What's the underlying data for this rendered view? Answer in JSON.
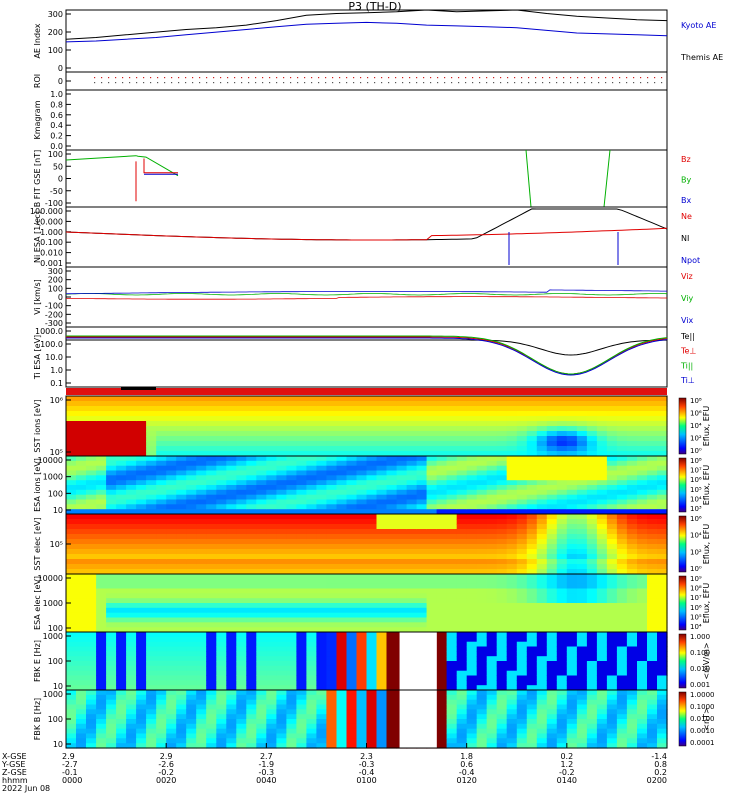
{
  "title": "P3 (TH-D)",
  "colors": {
    "black": "#000000",
    "red": "#e00000",
    "green": "#00b000",
    "blue": "#0000d0",
    "cyan": "#0080ff"
  },
  "chart_data": [
    {
      "type": "line",
      "name": "ae",
      "ylabel": "AE Index",
      "ylim": [
        -50,
        300
      ],
      "yticks": [
        "300",
        "200",
        "100",
        "0"
      ],
      "legend": [
        "Kyoto AE",
        "Themis AE"
      ],
      "series": [
        {
          "name": "Kyoto AE",
          "color": "#000000",
          "x": [
            0,
            5,
            10,
            15,
            20,
            25,
            30,
            35,
            40,
            45,
            50,
            55,
            60,
            65,
            70,
            75,
            80,
            85,
            90,
            95,
            100
          ],
          "values": [
            135,
            145,
            160,
            175,
            190,
            200,
            215,
            240,
            270,
            280,
            285,
            290,
            300,
            290,
            295,
            300,
            280,
            265,
            255,
            245,
            240
          ]
        },
        {
          "name": "Themis AE",
          "color": "#0000d0",
          "x": [
            0,
            5,
            10,
            15,
            20,
            25,
            30,
            35,
            40,
            45,
            50,
            55,
            60,
            65,
            70,
            75,
            80,
            85,
            90,
            95,
            100
          ],
          "values": [
            120,
            125,
            135,
            145,
            160,
            175,
            190,
            205,
            220,
            225,
            230,
            225,
            215,
            210,
            205,
            200,
            185,
            170,
            165,
            160,
            155
          ]
        }
      ]
    },
    {
      "type": "line",
      "name": "roi",
      "ylabel": "ROI",
      "ylim": [
        0,
        1
      ],
      "yticks": [
        "0"
      ]
    },
    {
      "type": "line",
      "name": "kgm",
      "ylabel": "Kmagram",
      "ylim": [
        0,
        1
      ],
      "yticks": [
        "1.0",
        "0.8",
        "0.6",
        "0.4",
        "0.2",
        "0.0"
      ]
    },
    {
      "type": "line",
      "name": "bfield",
      "ylabel": "B FIT GSE [nT]",
      "ylim": [
        -100,
        100
      ],
      "yticks": [
        "100",
        "50",
        "0",
        "-50",
        "-100"
      ],
      "legend": [
        "Bz",
        "By",
        "Bx"
      ]
    },
    {
      "type": "line",
      "name": "ni",
      "ylabel": "Ni ESA [1/cc]",
      "yticks": [
        "100.000",
        "10.000",
        "1.000",
        "0.100",
        "0.010",
        "0.001"
      ],
      "legend": [
        "Ne",
        "NI",
        "Npot"
      ]
    },
    {
      "type": "line",
      "name": "vi",
      "ylabel": "Vi [km/s]",
      "ylim": [
        -350,
        300
      ],
      "yticks": [
        "300",
        "200",
        "100",
        "0",
        "-100",
        "-200",
        "-300"
      ],
      "legend": [
        "Viz",
        "Viy",
        "Vix"
      ]
    },
    {
      "type": "line",
      "name": "ti",
      "ylabel": "Ti ESA [eV]",
      "yticks": [
        "1000.0",
        "100.0",
        "10.0",
        "1.0",
        "0.1"
      ],
      "legend": [
        "Te||",
        "Te⊥",
        "Ti||",
        "Ti⊥"
      ]
    },
    {
      "type": "heatmap",
      "name": "sst-ion",
      "ylabel": "SST ions [eV]",
      "yticks": [
        "10⁶",
        "10⁵"
      ],
      "cbar_label": "Eflux, EFU",
      "cbar_ticks": [
        "10⁸",
        "10⁶",
        "10⁴",
        "10²",
        "10⁰"
      ]
    },
    {
      "type": "heatmap",
      "name": "esa-ion",
      "ylabel": "ESA ions [eV]",
      "yticks": [
        "10000",
        "1000",
        "100",
        "10"
      ],
      "cbar_label": "Eflux, EFU",
      "cbar_ticks": [
        "10⁸",
        "10⁷",
        "10⁶",
        "10⁵",
        "10⁴",
        "10³"
      ]
    },
    {
      "type": "heatmap",
      "name": "sst-elec",
      "ylabel": "SST elec [eV]",
      "yticks": [
        "10⁵"
      ],
      "cbar_label": "Eflux, EFU",
      "cbar_ticks": [
        "10⁶",
        "10⁴",
        "10²",
        "10⁰"
      ]
    },
    {
      "type": "heatmap",
      "name": "esa-elec",
      "ylabel": "ESA elec [eV]",
      "yticks": [
        "10000",
        "1000",
        "100"
      ],
      "cbar_label": "Eflux, EFU",
      "cbar_ticks": [
        "10⁹",
        "10⁸",
        "10⁷",
        "10⁶",
        "10⁵",
        "10⁴"
      ]
    },
    {
      "type": "heatmap",
      "name": "fbk-e",
      "ylabel": "FBK E [Hz]",
      "yticks": [
        "1000",
        "100",
        "10"
      ],
      "cbar_label": "<mV/m>",
      "cbar_ticks": [
        "1.000",
        "0.100",
        "0.010",
        "0.001"
      ]
    },
    {
      "type": "heatmap",
      "name": "fbk-b",
      "ylabel": "FBK B [Hz]",
      "yticks": [
        "1000",
        "100",
        "10"
      ],
      "cbar_label": "<nT>",
      "cbar_ticks": [
        "1.0000",
        "0.1000",
        "0.0100",
        "0.0010",
        "0.0001"
      ]
    }
  ],
  "footer": {
    "labels": [
      "X-GSE",
      "Y-GSE",
      "Z-GSE",
      "hhmm",
      "2022 Jun 08"
    ],
    "columns": [
      {
        "x": "2.9",
        "y": "-2.7",
        "z": "-0.1",
        "t": "0000"
      },
      {
        "x": "2.9",
        "y": "-2.6",
        "z": "-0.2",
        "t": "0020"
      },
      {
        "x": "2.7",
        "y": "-1.9",
        "z": "-0.3",
        "t": "0040"
      },
      {
        "x": "2.3",
        "y": "-0.3",
        "z": "-0.4",
        "t": "0100"
      },
      {
        "x": "1.8",
        "y": "0.6",
        "z": "-0.4",
        "t": "0120"
      },
      {
        "x": "0.2",
        "y": "1.2",
        "z": "-0.2",
        "t": "0140"
      },
      {
        "x": "-1.4",
        "y": "0.8",
        "z": "0.2",
        "t": "0200"
      }
    ]
  }
}
